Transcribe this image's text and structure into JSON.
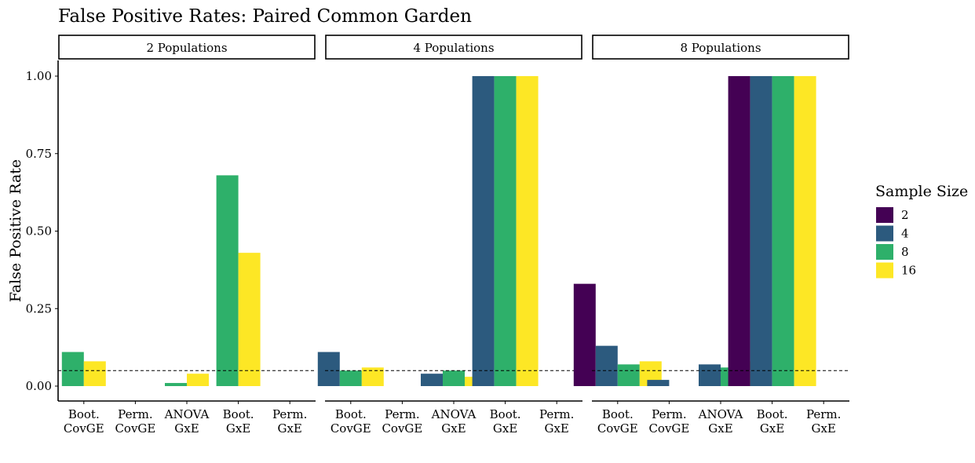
{
  "chart_data": {
    "type": "bar",
    "title": "False Positive Rates: Paired Common Garden",
    "xlabel": "",
    "ylabel": "False Positive Rate",
    "ylim": [
      0,
      1
    ],
    "yticks": [
      "0.00",
      "0.25",
      "0.50",
      "0.75",
      "1.00"
    ],
    "ytick_values": [
      0,
      0.25,
      0.5,
      0.75,
      1.0
    ],
    "reference_line": 0.05,
    "grid": false,
    "categories": [
      [
        "Boot.",
        "CovGE"
      ],
      [
        "Perm.",
        "CovGE"
      ],
      [
        "ANOVA",
        "GxE"
      ],
      [
        "Boot.",
        "GxE"
      ],
      [
        "Perm.",
        "GxE"
      ]
    ],
    "legend": {
      "title": "Sample Size",
      "position": "right",
      "entries": [
        {
          "label": "2",
          "color": "#440154"
        },
        {
          "label": "4",
          "color": "#2c5a7e"
        },
        {
          "label": "8",
          "color": "#2eb06a"
        },
        {
          "label": "16",
          "color": "#fde725"
        }
      ]
    },
    "panels": [
      {
        "label": "2 Populations",
        "series": [
          {
            "name": "2",
            "values": [
              null,
              null,
              null,
              null,
              null
            ]
          },
          {
            "name": "4",
            "values": [
              null,
              null,
              null,
              null,
              null
            ]
          },
          {
            "name": "8",
            "values": [
              0.11,
              0,
              0.01,
              0.68,
              0
            ]
          },
          {
            "name": "16",
            "values": [
              0.08,
              0,
              0.04,
              0.43,
              0
            ]
          }
        ]
      },
      {
        "label": "4 Populations",
        "series": [
          {
            "name": "2",
            "values": [
              null,
              null,
              null,
              null,
              null
            ]
          },
          {
            "name": "4",
            "values": [
              0.11,
              0,
              0.04,
              1.0,
              0
            ]
          },
          {
            "name": "8",
            "values": [
              0.05,
              0,
              0.05,
              1.0,
              0
            ]
          },
          {
            "name": "16",
            "values": [
              0.06,
              0,
              0.03,
              1.0,
              0
            ]
          }
        ]
      },
      {
        "label": "8 Populations",
        "series": [
          {
            "name": "2",
            "values": [
              0.33,
              0,
              0,
              1.0,
              0
            ]
          },
          {
            "name": "4",
            "values": [
              0.13,
              0.02,
              0.07,
              1.0,
              0
            ]
          },
          {
            "name": "8",
            "values": [
              0.07,
              0,
              0.06,
              1.0,
              0
            ]
          },
          {
            "name": "16",
            "values": [
              0.08,
              0,
              0.08,
              1.0,
              0
            ]
          }
        ]
      }
    ]
  }
}
